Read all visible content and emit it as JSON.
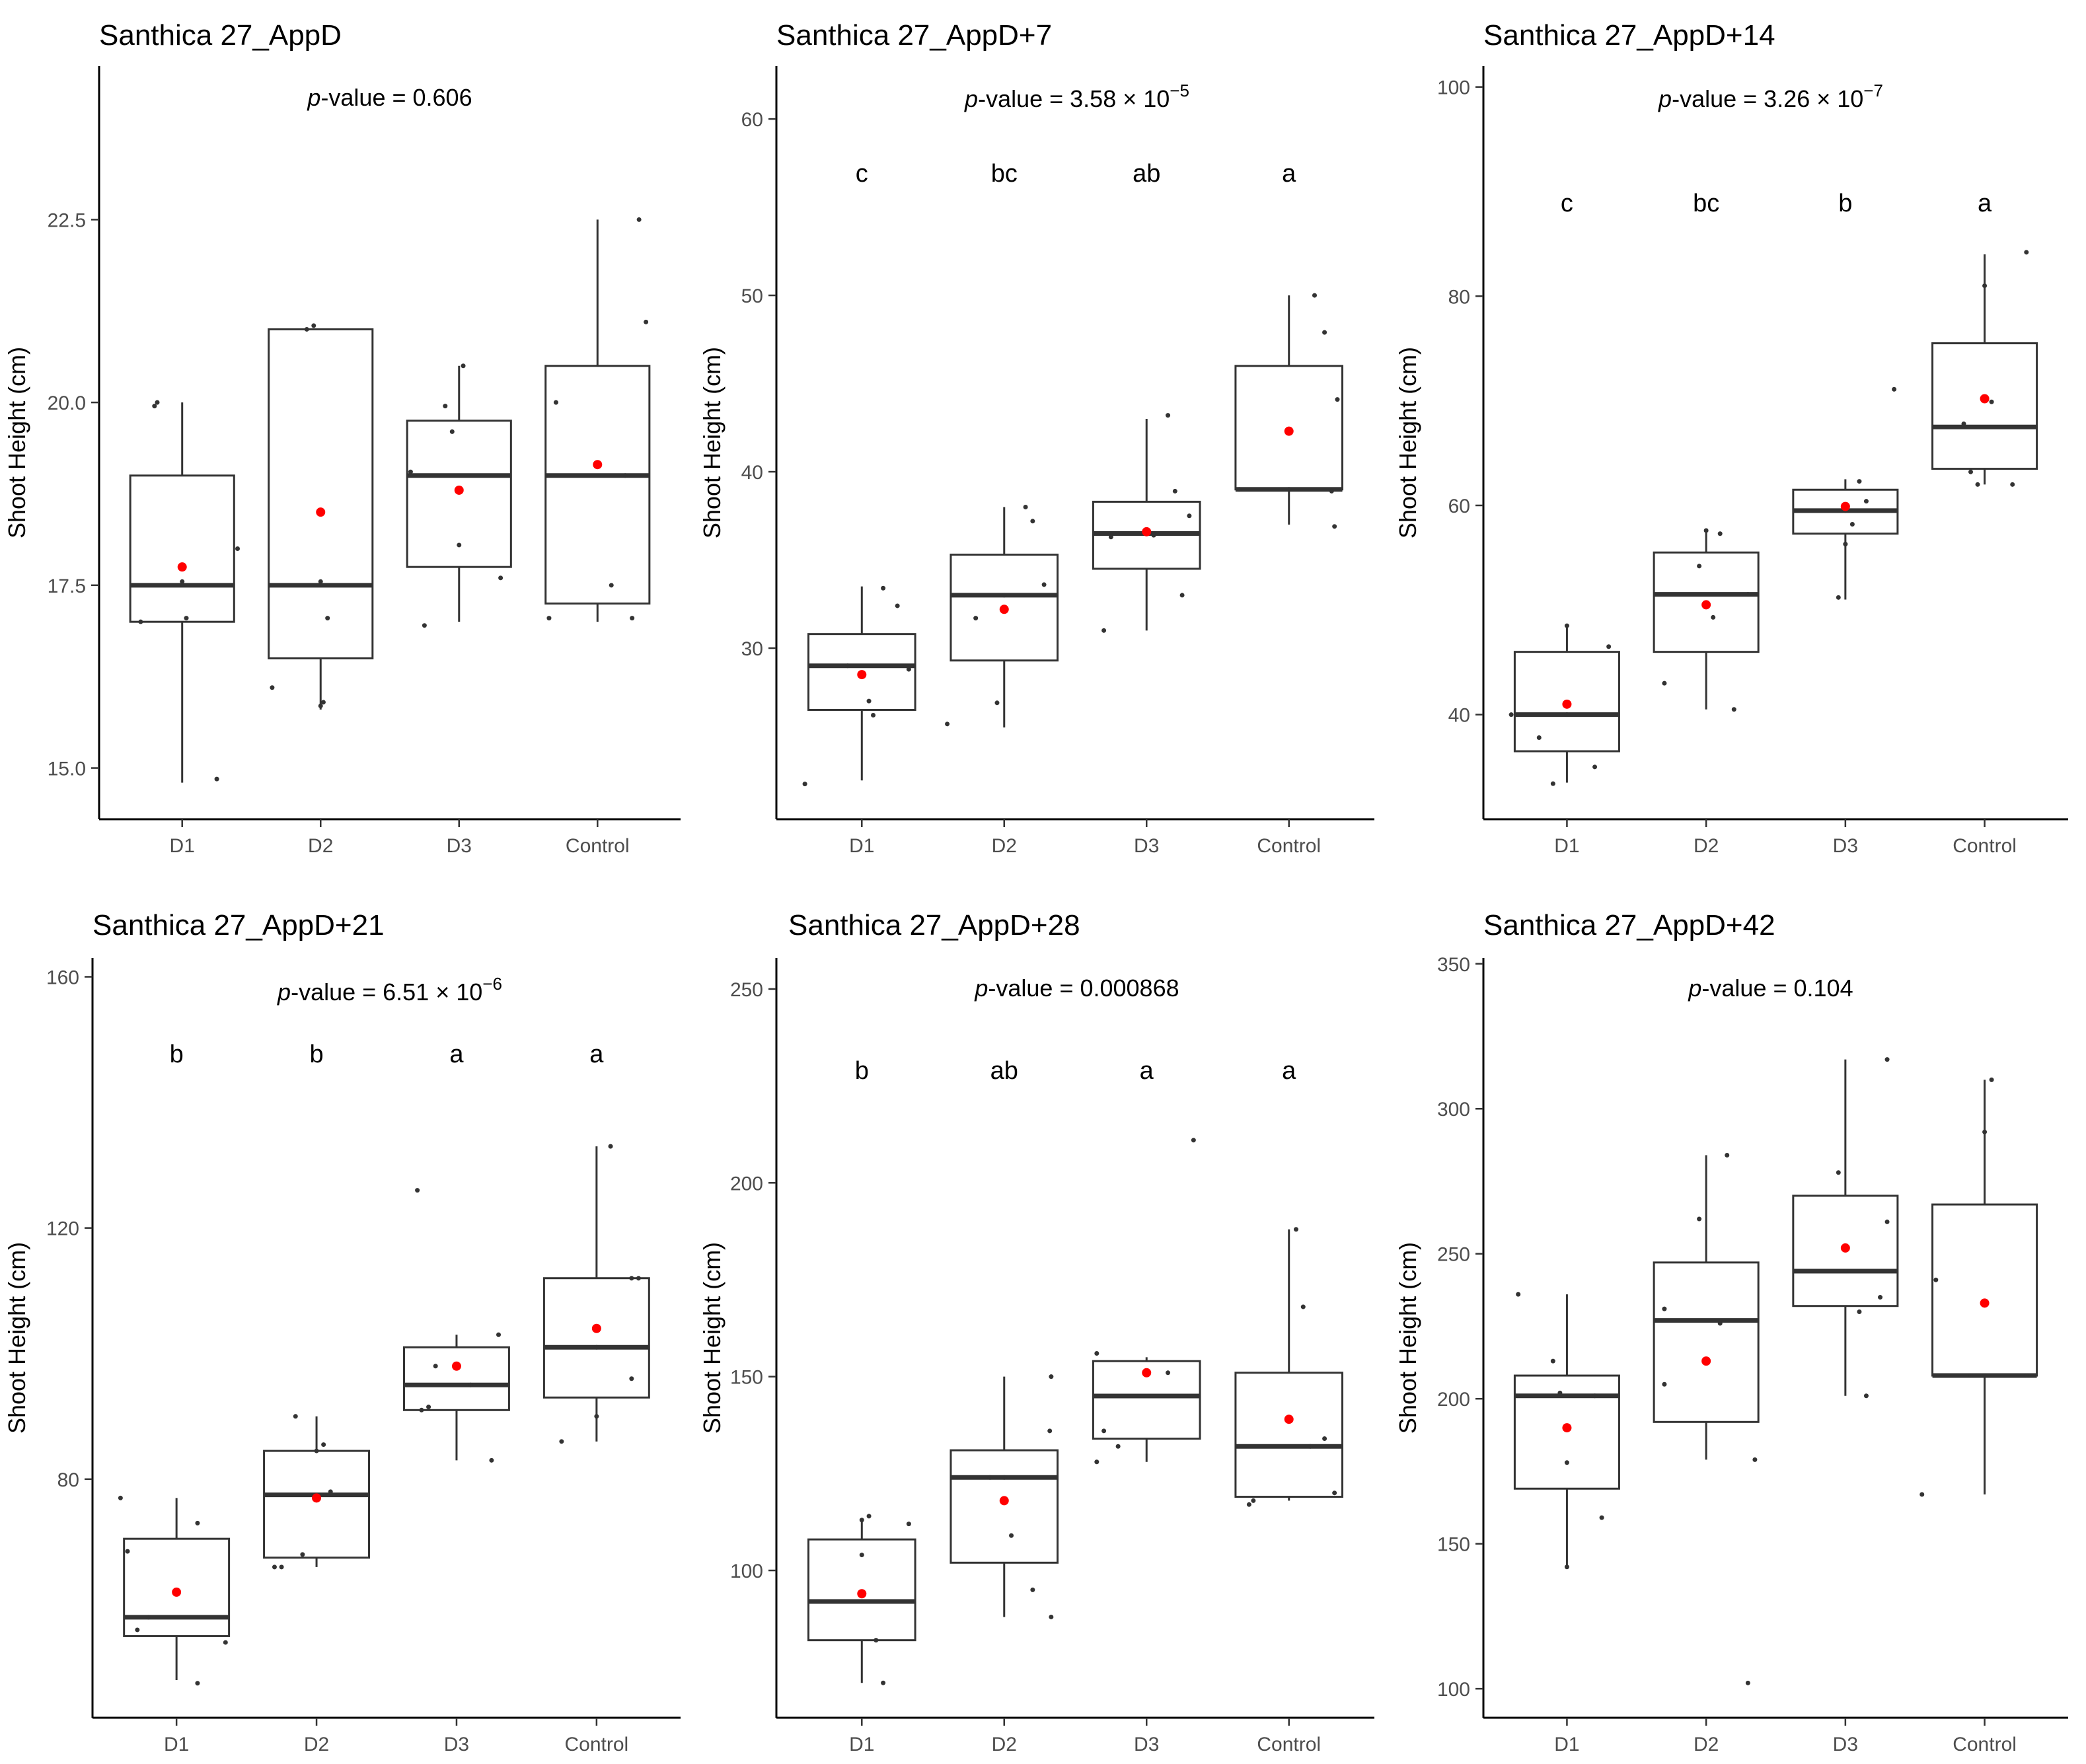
{
  "chart_data": [
    {
      "type": "box",
      "title": "Santhica 27_AppD",
      "ylabel": "Shoot Height (cm)",
      "xlabel": "",
      "categories": [
        "D1",
        "D2",
        "D3",
        "Control"
      ],
      "ylim": [
        14.3,
        24.6
      ],
      "yticks": [
        15.0,
        17.5,
        20.0,
        22.5
      ],
      "ytick_labels": [
        "15.0",
        "17.5",
        "20.0",
        "22.5"
      ],
      "pvalue": {
        "prefix": "p",
        "text": "-value =  0.606",
        "exp": ""
      },
      "letters": [],
      "boxes": [
        {
          "q1": 17.0,
          "median": 17.5,
          "q3": 19.0,
          "whisker_low": 14.8,
          "whisker_high": 20.0,
          "mean": 17.75
        },
        {
          "q1": 16.5,
          "median": 17.5,
          "q3": 21.0,
          "whisker_low": 15.8,
          "whisker_high": 21.0,
          "mean": 18.5
        },
        {
          "q1": 17.75,
          "median": 19.0,
          "q3": 19.75,
          "whisker_low": 17.0,
          "whisker_high": 20.5,
          "mean": 18.8
        },
        {
          "q1": 17.25,
          "median": 19.0,
          "q3": 20.5,
          "whisker_low": 17.0,
          "whisker_high": 22.5,
          "mean": 19.15
        }
      ],
      "points": [
        [
          [
            -0.3,
            17.0
          ],
          [
            -0.2,
            19.95
          ],
          [
            -0.18,
            20.0
          ],
          [
            0.0,
            17.55
          ],
          [
            0.03,
            17.05
          ],
          [
            0.25,
            14.85
          ],
          [
            0.4,
            18.0
          ]
        ],
        [
          [
            -0.35,
            16.1
          ],
          [
            -0.1,
            21.0
          ],
          [
            -0.05,
            21.05
          ],
          [
            0.0,
            17.55
          ],
          [
            0.0,
            15.85
          ],
          [
            0.02,
            15.9
          ],
          [
            0.05,
            17.05
          ]
        ],
        [
          [
            -0.35,
            19.05
          ],
          [
            -0.25,
            16.95
          ],
          [
            -0.1,
            19.95
          ],
          [
            -0.05,
            19.6
          ],
          [
            0.0,
            18.05
          ],
          [
            0.03,
            20.5
          ],
          [
            0.3,
            17.6
          ]
        ],
        [
          [
            -0.35,
            17.05
          ],
          [
            -0.3,
            20.0
          ],
          [
            0.1,
            17.5
          ],
          [
            0.2,
            19.0
          ],
          [
            0.25,
            17.05
          ],
          [
            0.3,
            22.5
          ],
          [
            0.35,
            21.1
          ]
        ]
      ]
    },
    {
      "type": "box",
      "title": "Santhica 27_AppD+7",
      "ylabel": "Shoot Height (cm)",
      "xlabel": "",
      "categories": [
        "D1",
        "D2",
        "D3",
        "Control"
      ],
      "ylim": [
        20.3,
        63.0
      ],
      "yticks": [
        30,
        40,
        50,
        60
      ],
      "ytick_labels": [
        "30",
        "40",
        "50",
        "60"
      ],
      "pvalue": {
        "prefix": "p",
        "text": "-value = 3.58 × 10",
        "exp": "−5"
      },
      "letters": [
        "c",
        "bc",
        "ab",
        "a"
      ],
      "boxes": [
        {
          "q1": 26.5,
          "median": 29.0,
          "q3": 30.8,
          "whisker_low": 22.5,
          "whisker_high": 33.5,
          "mean": 28.5
        },
        {
          "q1": 29.3,
          "median": 33.0,
          "q3": 35.3,
          "whisker_low": 25.5,
          "whisker_high": 38.0,
          "mean": 32.2
        },
        {
          "q1": 34.5,
          "median": 36.5,
          "q3": 38.3,
          "whisker_low": 31.0,
          "whisker_high": 43.0,
          "mean": 36.6
        },
        {
          "q1": 39.0,
          "median": 39.0,
          "q3": 46.0,
          "whisker_low": 37.0,
          "whisker_high": 50.0,
          "mean": 42.3
        }
      ],
      "points": [
        [
          [
            -0.4,
            22.3
          ],
          [
            -0.1,
            29.0
          ],
          [
            0.05,
            27.0
          ],
          [
            0.08,
            26.2
          ],
          [
            0.15,
            33.4
          ],
          [
            0.25,
            32.4
          ],
          [
            0.33,
            28.8
          ]
        ],
        [
          [
            -0.4,
            25.7
          ],
          [
            -0.2,
            31.7
          ],
          [
            -0.05,
            26.9
          ],
          [
            0.0,
            33.0
          ],
          [
            0.15,
            38.0
          ],
          [
            0.2,
            37.2
          ],
          [
            0.28,
            33.6
          ]
        ],
        [
          [
            -0.3,
            31.0
          ],
          [
            -0.25,
            36.3
          ],
          [
            0.05,
            36.4
          ],
          [
            0.15,
            43.2
          ],
          [
            0.2,
            38.9
          ],
          [
            0.25,
            33.0
          ],
          [
            0.3,
            37.5
          ]
        ],
        [
          [
            -0.35,
            39.0
          ],
          [
            0.18,
            50.0
          ],
          [
            0.25,
            47.9
          ],
          [
            0.3,
            38.9
          ],
          [
            0.32,
            36.9
          ],
          [
            0.34,
            44.1
          ],
          [
            0.0,
            39.0
          ]
        ]
      ]
    },
    {
      "type": "box",
      "title": "Santhica 27_AppD+14",
      "ylabel": "Shoot Height (cm)",
      "xlabel": "",
      "categories": [
        "D1",
        "D2",
        "D3",
        "Control"
      ],
      "ylim": [
        30.0,
        102.0
      ],
      "yticks": [
        40,
        60,
        80,
        100
      ],
      "ytick_labels": [
        "40",
        "60",
        "80",
        "100"
      ],
      "pvalue": {
        "prefix": "p",
        "text": "-value = 3.26 × 10",
        "exp": "−7"
      },
      "letters": [
        "c",
        "bc",
        "b",
        "a"
      ],
      "boxes": [
        {
          "q1": 36.5,
          "median": 40.0,
          "q3": 46.0,
          "whisker_low": 33.5,
          "whisker_high": 48.5,
          "mean": 41.0
        },
        {
          "q1": 46.0,
          "median": 51.5,
          "q3": 55.5,
          "whisker_low": 40.5,
          "whisker_high": 57.5,
          "mean": 50.5
        },
        {
          "q1": 57.3,
          "median": 59.5,
          "q3": 61.5,
          "whisker_low": 51.0,
          "whisker_high": 62.5,
          "mean": 59.9
        },
        {
          "q1": 63.5,
          "median": 67.5,
          "q3": 75.5,
          "whisker_low": 62.0,
          "whisker_high": 84.0,
          "mean": 70.2
        }
      ],
      "points": [
        [
          [
            -0.4,
            40.0
          ],
          [
            -0.2,
            37.8
          ],
          [
            -0.1,
            33.4
          ],
          [
            0.0,
            40.0
          ],
          [
            0.0,
            48.5
          ],
          [
            0.2,
            35.0
          ],
          [
            0.3,
            46.5
          ]
        ],
        [
          [
            -0.3,
            43.0
          ],
          [
            -0.05,
            54.2
          ],
          [
            0.0,
            57.6
          ],
          [
            0.05,
            49.3
          ],
          [
            0.1,
            57.3
          ],
          [
            0.2,
            40.5
          ],
          [
            0.3,
            51.5
          ]
        ],
        [
          [
            -0.05,
            51.2
          ],
          [
            0.0,
            56.3
          ],
          [
            0.05,
            58.2
          ],
          [
            0.1,
            62.3
          ],
          [
            0.15,
            60.4
          ],
          [
            0.35,
            71.1
          ],
          [
            0.0,
            59.5
          ]
        ],
        [
          [
            -0.15,
            67.8
          ],
          [
            -0.05,
            62.0
          ],
          [
            0.0,
            81.0
          ],
          [
            -0.1,
            63.2
          ],
          [
            0.05,
            69.9
          ],
          [
            0.3,
            84.2
          ],
          [
            0.2,
            62.0
          ]
        ]
      ]
    },
    {
      "type": "box",
      "title": "Santhica 27_AppD+21",
      "ylabel": "Shoot Height (cm)",
      "xlabel": "",
      "categories": [
        "D1",
        "D2",
        "D3",
        "Control"
      ],
      "ylim": [
        42.0,
        163.0
      ],
      "yticks": [
        80,
        120,
        160
      ],
      "ytick_labels": [
        "80",
        "120",
        "160"
      ],
      "pvalue": {
        "prefix": "p",
        "text": "-value = 6.51 × 10",
        "exp": "−6"
      },
      "letters": [
        "b",
        "b",
        "a",
        "a"
      ],
      "boxes": [
        {
          "q1": 55.0,
          "median": 58.0,
          "q3": 70.5,
          "whisker_low": 48.0,
          "whisker_high": 77.0,
          "mean": 62.0
        },
        {
          "q1": 67.5,
          "median": 77.5,
          "q3": 84.5,
          "whisker_low": 66.0,
          "whisker_high": 90.0,
          "mean": 77.0
        },
        {
          "q1": 91.0,
          "median": 95.0,
          "q3": 101.0,
          "whisker_low": 83.0,
          "whisker_high": 103.0,
          "mean": 98.0
        },
        {
          "q1": 93.0,
          "median": 101.0,
          "q3": 112.0,
          "whisker_low": 86.0,
          "whisker_high": 133.0,
          "mean": 104.0
        }
      ],
      "points": [
        [
          [
            -0.4,
            77.0
          ],
          [
            -0.35,
            68.5
          ],
          [
            -0.28,
            56.0
          ],
          [
            -0.2,
            58.0
          ],
          [
            0.15,
            73.0
          ],
          [
            0.15,
            47.5
          ],
          [
            0.35,
            54.0
          ]
        ],
        [
          [
            -0.3,
            66.0
          ],
          [
            -0.25,
            66.0
          ],
          [
            -0.15,
            90.0
          ],
          [
            -0.1,
            68.0
          ],
          [
            0.0,
            84.5
          ],
          [
            0.05,
            85.5
          ],
          [
            0.1,
            78.0
          ]
        ],
        [
          [
            -0.25,
            91.0
          ],
          [
            -0.28,
            126.0
          ],
          [
            -0.2,
            91.5
          ],
          [
            -0.15,
            98.0
          ],
          [
            0.1,
            95.0
          ],
          [
            0.25,
            83.0
          ],
          [
            0.3,
            103.0
          ]
        ],
        [
          [
            -0.25,
            86.0
          ],
          [
            0.0,
            90.0
          ],
          [
            0.1,
            133.0
          ],
          [
            0.25,
            112.0
          ],
          [
            0.3,
            112.0
          ],
          [
            0.25,
            96.0
          ],
          [
            0.0,
            101.0
          ]
        ]
      ]
    },
    {
      "type": "box",
      "title": "Santhica 27_AppD+28",
      "ylabel": "Shoot Height (cm)",
      "xlabel": "",
      "categories": [
        "D1",
        "D2",
        "D3",
        "Control"
      ],
      "ylim": [
        62.0,
        258.0
      ],
      "yticks": [
        100,
        150,
        200,
        250
      ],
      "ytick_labels": [
        "100",
        "150",
        "200",
        "250"
      ],
      "pvalue": {
        "prefix": "p",
        "text": "-value =  0.000868",
        "exp": ""
      },
      "letters": [
        "b",
        "ab",
        "a",
        "a"
      ],
      "boxes": [
        {
          "q1": 82.0,
          "median": 92.0,
          "q3": 108.0,
          "whisker_low": 71.0,
          "whisker_high": 113.0,
          "mean": 94.0
        },
        {
          "q1": 102.0,
          "median": 124.0,
          "q3": 131.0,
          "whisker_low": 88.0,
          "whisker_high": 150.0,
          "mean": 118.0
        },
        {
          "q1": 134.0,
          "median": 145.0,
          "q3": 154.0,
          "whisker_low": 128.0,
          "whisker_high": 155.0,
          "mean": 151.0
        },
        {
          "q1": 119.0,
          "median": 132.0,
          "q3": 151.0,
          "whisker_low": 118.0,
          "whisker_high": 188.0,
          "mean": 139.0
        }
      ],
      "points": [
        [
          [
            -0.3,
            92.0
          ],
          [
            0.0,
            104.0
          ],
          [
            0.0,
            113.0
          ],
          [
            0.05,
            114.0
          ],
          [
            0.1,
            82.0
          ],
          [
            0.15,
            71.0
          ],
          [
            0.33,
            112.0
          ]
        ],
        [
          [
            -0.1,
            124.0
          ],
          [
            0.0,
            124.0
          ],
          [
            0.05,
            109.0
          ],
          [
            0.2,
            95.0
          ],
          [
            0.33,
            150.0
          ],
          [
            0.32,
            136.0
          ],
          [
            0.33,
            88.0
          ]
        ],
        [
          [
            -0.35,
            128.0
          ],
          [
            -0.35,
            156.0
          ],
          [
            -0.3,
            136.0
          ],
          [
            -0.2,
            132.0
          ],
          [
            0.15,
            151.0
          ],
          [
            0.3,
            145.0
          ],
          [
            0.33,
            211.0
          ]
        ],
        [
          [
            -0.28,
            117.0
          ],
          [
            -0.25,
            118.0
          ],
          [
            0.05,
            188.0
          ],
          [
            0.1,
            168.0
          ],
          [
            0.25,
            134.0
          ],
          [
            0.32,
            120.0
          ],
          [
            0.15,
            132.0
          ]
        ]
      ]
    },
    {
      "type": "box",
      "title": "Santhica 27_AppD+42",
      "ylabel": "Shoot Height (cm)",
      "xlabel": "",
      "categories": [
        "D1",
        "D2",
        "D3",
        "Control"
      ],
      "ylim": [
        90.0,
        352.0
      ],
      "yticks": [
        100,
        150,
        200,
        250,
        300,
        350
      ],
      "ytick_labels": [
        "100",
        "150",
        "200",
        "250",
        "300",
        "350"
      ],
      "pvalue": {
        "prefix": "p",
        "text": "-value =  0.104",
        "exp": ""
      },
      "letters": [],
      "boxes": [
        {
          "q1": 169.0,
          "median": 201.0,
          "q3": 208.0,
          "whisker_low": 142.0,
          "whisker_high": 236.0,
          "mean": 190.0
        },
        {
          "q1": 192.0,
          "median": 227.0,
          "q3": 247.0,
          "whisker_low": 179.0,
          "whisker_high": 284.0,
          "mean": 213.0
        },
        {
          "q1": 232.0,
          "median": 244.0,
          "q3": 270.0,
          "whisker_low": 201.0,
          "whisker_high": 317.0,
          "mean": 252.0
        },
        {
          "q1": 208.0,
          "median": 208.0,
          "q3": 267.0,
          "whisker_low": 167.0,
          "whisker_high": 310.0,
          "mean": 233.0
        }
      ],
      "points": [
        [
          [
            -0.35,
            236.0
          ],
          [
            -0.1,
            213.0
          ],
          [
            -0.05,
            202.0
          ],
          [
            0.0,
            142.0
          ],
          [
            0.0,
            178.0
          ],
          [
            0.2,
            201.0
          ],
          [
            0.25,
            159.0
          ]
        ],
        [
          [
            -0.3,
            231.0
          ],
          [
            -0.3,
            205.0
          ],
          [
            -0.05,
            262.0
          ],
          [
            0.1,
            226.0
          ],
          [
            0.15,
            284.0
          ],
          [
            0.3,
            102.0
          ],
          [
            0.35,
            179.0
          ]
        ],
        [
          [
            -0.05,
            278.0
          ],
          [
            0.0,
            244.0
          ],
          [
            0.1,
            230.0
          ],
          [
            0.15,
            201.0
          ],
          [
            0.25,
            235.0
          ],
          [
            0.3,
            261.0
          ],
          [
            0.3,
            317.0
          ]
        ],
        [
          [
            -0.45,
            167.0
          ],
          [
            -0.35,
            241.0
          ],
          [
            -0.1,
            208.0
          ],
          [
            0.0,
            292.0
          ],
          [
            0.05,
            310.0
          ],
          [
            0.3,
            208.0
          ],
          [
            0.0,
            208.0
          ]
        ]
      ]
    }
  ]
}
